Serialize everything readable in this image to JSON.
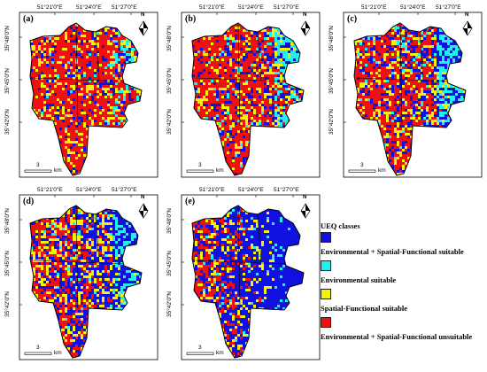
{
  "colors": {
    "blue": "#1010e0",
    "cyan": "#22f0f0",
    "yellow": "#f4f400",
    "red": "#f01010"
  },
  "coords": {
    "top": [
      "51°21'0\"E",
      "51°24'0\"E",
      "51°27'0\"E"
    ],
    "left": [
      "35°48'0\"N",
      "35°45'0\"N",
      "35°42'0\"N"
    ]
  },
  "scale": {
    "number": "3",
    "unit": "km"
  },
  "north_icon": "north-arrow-icon",
  "north_letter": "N",
  "panels": [
    {
      "label": "(a)",
      "shares": {
        "blue": 0.12,
        "cyan": 0.05,
        "yellow": 0.18,
        "red": 0.65
      }
    },
    {
      "label": "(b)",
      "shares": {
        "blue": 0.18,
        "cyan": 0.1,
        "yellow": 0.17,
        "red": 0.55
      }
    },
    {
      "label": "(c)",
      "shares": {
        "blue": 0.28,
        "cyan": 0.12,
        "yellow": 0.18,
        "red": 0.42
      }
    },
    {
      "label": "(d)",
      "shares": {
        "blue": 0.38,
        "cyan": 0.1,
        "yellow": 0.22,
        "red": 0.3
      }
    },
    {
      "label": "(e)",
      "shares": {
        "blue": 0.62,
        "cyan": 0.06,
        "yellow": 0.18,
        "red": 0.14
      }
    }
  ],
  "legend": {
    "title": "UEQ classes",
    "items": [
      {
        "label": "Environmental + Spatial-Functional suitable",
        "color": "#1010e0"
      },
      {
        "label": "Environmental suitable",
        "color": "#22f0f0"
      },
      {
        "label": "Spatial-Functional suitable",
        "color": "#f4f400"
      },
      {
        "label": "Environmental + Spatial-Functional unsuitable",
        "color": "#f01010"
      }
    ]
  }
}
